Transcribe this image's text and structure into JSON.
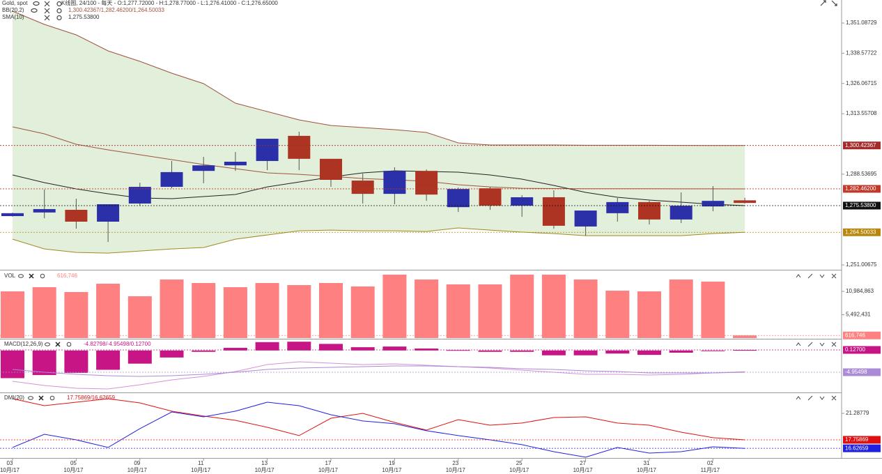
{
  "header": {
    "instrument": "Gold, spot",
    "chart_info": "K线图, 24/100 - 每天 - O:1,277.72000 - H:1,278.77000 - L:1,276.41000 - C:1,276.65000",
    "indicators": [
      {
        "name": "BB(20,2)",
        "value": "1,300.42367/1,282.46200/1,264.50033"
      },
      {
        "name": "SMA(10)",
        "value": "1,275.53800"
      }
    ]
  },
  "chart_data": [
    {
      "type": "candlestick",
      "categories": [
        "03",
        null,
        "05",
        null,
        "09",
        null,
        "11",
        null,
        "13",
        null,
        "17",
        null,
        "19",
        null,
        "23",
        null,
        "25",
        null,
        "27",
        null,
        "31",
        null,
        "02",
        null
      ],
      "category_sublabels": [
        "10月/17",
        null,
        "10月/17",
        null,
        "10月/17",
        null,
        "10月/17",
        null,
        "10月/17",
        null,
        "10月/17",
        null,
        "10月/17",
        null,
        "10月/17",
        null,
        "10月/17",
        null,
        "10月/17",
        null,
        "10月/17",
        null,
        "11月/17",
        null
      ],
      "open": [
        1271.2,
        1272.7,
        1273.8,
        1268.9,
        1276.4,
        1283.3,
        1289.9,
        1292.2,
        1294.0,
        1304.4,
        1294.9,
        1285.9,
        1280.4,
        1289.9,
        1274.9,
        1282.7,
        1275.5,
        1279.0,
        1266.9,
        1272.4,
        1277.0,
        1269.8,
        1275.2,
        1277.72
      ],
      "high": [
        1272.6,
        1282.2,
        1278.4,
        1276.1,
        1285.0,
        1294.0,
        1295.7,
        1297.7,
        1303.2,
        1306.1,
        1294.9,
        1288.8,
        1291.4,
        1290.5,
        1283.0,
        1283.3,
        1279.9,
        1281.9,
        1273.5,
        1278.7,
        1277.5,
        1281.0,
        1283.6,
        1278.77
      ],
      "low": [
        1271.0,
        1270.3,
        1266.0,
        1260.5,
        1275.5,
        1282.7,
        1284.8,
        1289.9,
        1290.2,
        1290.2,
        1283.3,
        1276.4,
        1276.1,
        1277.5,
        1272.9,
        1273.8,
        1270.9,
        1266.0,
        1263.1,
        1268.9,
        1267.7,
        1268.3,
        1273.2,
        1276.41
      ],
      "close": [
        1272.4,
        1274.1,
        1268.9,
        1276.1,
        1283.3,
        1289.4,
        1292.2,
        1293.7,
        1303.2,
        1294.9,
        1286.2,
        1280.4,
        1289.9,
        1280.1,
        1282.4,
        1275.5,
        1279.0,
        1267.2,
        1273.5,
        1277.0,
        1269.8,
        1275.5,
        1277.5,
        1276.65
      ],
      "up_color": "#2b2fa8",
      "down_color": "#ad3322",
      "band_color": "#e2efda",
      "lines": [
        {
          "color": "#a0523c",
          "values": [
            1356.0,
            1350.51,
            1346.18,
            1339.55,
            1335.22,
            1330.32,
            1325.99,
            1317.92,
            1314.45,
            1310.99,
            1308.68,
            1307.82,
            1306.95,
            1305.8,
            1301.47,
            1300.61,
            1300.61,
            1300.61,
            1300.5,
            1300.5,
            1300.5,
            1300.45,
            1300.4,
            1300.42367
          ]
        },
        {
          "color": "#a0523c",
          "values": [
            1308.11,
            1305.22,
            1300.9,
            1298.59,
            1296.57,
            1294.55,
            1292.53,
            1290.8,
            1289.07,
            1288.49,
            1287.63,
            1286.76,
            1286.19,
            1285.61,
            1284.17,
            1283.3,
            1282.72,
            1282.6,
            1282.55,
            1282.5,
            1282.5,
            1282.48,
            1282.47,
            1282.462
          ]
        },
        {
          "color": "#a08a20",
          "values": [
            1261.67,
            1257.63,
            1256.19,
            1255.9,
            1256.77,
            1257.63,
            1258.21,
            1261.67,
            1263.4,
            1265.13,
            1265.42,
            1265.13,
            1265.13,
            1264.84,
            1266.29,
            1265.42,
            1264.56,
            1263.98,
            1263.11,
            1263.11,
            1263.11,
            1263.11,
            1263.98,
            1264.50033
          ]
        },
        {
          "color": "#222222",
          "values": [
            1288.21,
            1285.04,
            1282.46,
            1280.42,
            1278.69,
            1278.4,
            1279.27,
            1280.14,
            1283.3,
            1285.32,
            1287.34,
            1289.07,
            1289.94,
            1289.65,
            1289.36,
            1288.21,
            1286.48,
            1283.88,
            1281.0,
            1278.98,
            1277.83,
            1276.96,
            1276.1,
            1275.538
          ]
        }
      ],
      "ylim": [
        1249.0,
        1360.6
      ],
      "yticks": [
        {
          "value": 1351.08729,
          "label": "1,351.08729"
        },
        {
          "value": 1338.57722,
          "label": "1,338.57722"
        },
        {
          "value": 1326.06715,
          "label": "1,326.06715"
        },
        {
          "value": 1313.55708,
          "label": "1,313.55708"
        },
        {
          "value": 1288.53695,
          "label": "1,288.53695"
        },
        {
          "value": 1251.00675,
          "label": "1,251.00675"
        }
      ],
      "markers": [
        {
          "value": 1300.42367,
          "label": "1,300.42367",
          "color": "#a52a2a"
        },
        {
          "value": 1282.462,
          "label": "1,282.46200",
          "color": "#c0392b"
        },
        {
          "value": 1275.538,
          "label": "1,275.53800",
          "color": "#111111"
        },
        {
          "value": 1264.50033,
          "label": "1,264.50033",
          "color": "#b8860b"
        }
      ]
    },
    {
      "type": "bar",
      "title": "VOL",
      "header_value": "616,746",
      "color": "#ff8080",
      "values": [
        10984863,
        11968569,
        10820910,
        12788346,
        9836910,
        13772052,
        12952287,
        11968569,
        12952287,
        12460428,
        12952287,
        12132522,
        14919723,
        13772052,
        12624381,
        12624381,
        14919723,
        14919723,
        13772052,
        11148804,
        10984863,
        13772052,
        13280193,
        616746
      ],
      "ylim": [
        0,
        15739000
      ],
      "yticks": [
        {
          "value": 10984863,
          "label": "10,984,863"
        },
        {
          "value": 5492431,
          "label": "5,492,431"
        }
      ],
      "markers": [
        {
          "value": 616746,
          "label": "616,746",
          "color": "#ff8080"
        }
      ]
    },
    {
      "type": "macd",
      "title": "MACD(12,26,9)",
      "header_value": "-4.82798/-4.95498/0.12700",
      "color": "#c71585",
      "values": [
        -6.3,
        -5.6,
        -5.1,
        -4.4,
        -3.0,
        -1.6,
        -0.3,
        0.6,
        1.9,
        2.0,
        1.5,
        0.75,
        0.9,
        0.45,
        0.1,
        -0.3,
        -0.3,
        -1.1,
        -1.1,
        -0.7,
        -1.0,
        -0.5,
        -0.1,
        0.127
      ],
      "lines": [
        {
          "color": "#d690d6",
          "values": [
            -7.02,
            -7.97,
            -8.61,
            -8.77,
            -7.81,
            -6.7,
            -5.91,
            -4.8,
            -3.21,
            -2.57,
            -2.89,
            -3.21,
            -3.05,
            -3.37,
            -3.68,
            -4.0,
            -4.48,
            -4.95,
            -5.43,
            -5.43,
            -5.59,
            -5.43,
            -5.11,
            -4.82798
          ]
        },
        {
          "color": "#a98bd6",
          "values": [
            -4.32,
            -4.95,
            -5.43,
            -5.75,
            -5.91,
            -5.75,
            -5.43,
            -4.95,
            -4.32,
            -4.0,
            -3.84,
            -3.68,
            -3.53,
            -3.53,
            -3.68,
            -3.84,
            -4.16,
            -4.32,
            -4.64,
            -4.8,
            -5.11,
            -5.11,
            -5.11,
            -4.95498
          ]
        }
      ],
      "ylim": [
        -9.4,
        2.51
      ],
      "markers": [
        {
          "value": 0.127,
          "label": "0.12700",
          "color": "#c71585"
        },
        {
          "value": -4.95498,
          "label": "-4.95498",
          "color": "#a98bd6"
        }
      ]
    },
    {
      "type": "line",
      "title": "DMI(20)",
      "header_value": "17.75869/16.62659",
      "lines": [
        {
          "color": "#e01010",
          "values": [
            23.24,
            22.31,
            22.77,
            23.24,
            22.68,
            21.57,
            20.92,
            20.36,
            19.43,
            18.32,
            20.64,
            21.29,
            20.08,
            19.06,
            20.45,
            19.71,
            19.99,
            20.73,
            20.82,
            19.99,
            19.71,
            18.78,
            18.04,
            17.75869
          ]
        },
        {
          "color": "#2020e0",
          "values": [
            16.74,
            18.5,
            17.76,
            16.74,
            19.25,
            21.47,
            20.82,
            21.57,
            22.77,
            22.31,
            21.1,
            20.27,
            19.9,
            18.97,
            18.32,
            17.76,
            17.11,
            16.18,
            15.44,
            16.74,
            15.99,
            16.18,
            16.83,
            16.62659
          ]
        }
      ],
      "ylim": [
        15.34,
        23.98
      ],
      "yticks": [
        {
          "value": 21.28779,
          "label": "21.28779"
        }
      ],
      "markers": [
        {
          "value": 17.75869,
          "label": "17.75869",
          "color": "#e01010"
        },
        {
          "value": 16.62659,
          "label": "16.62659",
          "color": "#2020e0"
        }
      ]
    }
  ]
}
